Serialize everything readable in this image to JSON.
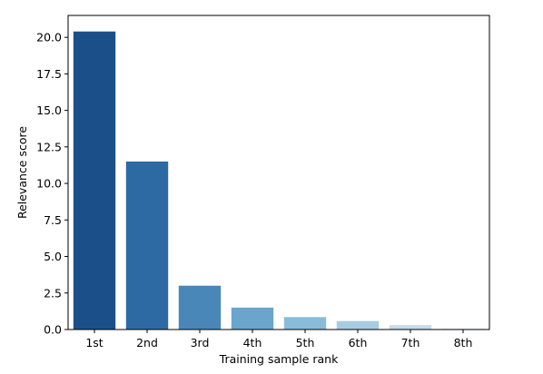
{
  "chart_data": {
    "type": "bar",
    "categories": [
      "1st",
      "2nd",
      "3rd",
      "4th",
      "5th",
      "6th",
      "7th",
      "8th"
    ],
    "values": [
      20.4,
      11.5,
      3.0,
      1.5,
      0.85,
      0.58,
      0.3,
      0.05
    ],
    "colors": [
      "#1b4f8a",
      "#2d6aa3",
      "#4a87b9",
      "#6aa5cc",
      "#89bcd9",
      "#a6cce3",
      "#c2dced",
      "#dbe9f6"
    ],
    "title": "",
    "xlabel": "Training sample rank",
    "ylabel": "Relevance score",
    "ylim": [
      0,
      21.5
    ],
    "yticks": [
      0.0,
      2.5,
      5.0,
      7.5,
      10.0,
      12.5,
      15.0,
      17.5,
      20.0
    ],
    "ytick_labels": [
      "0.0",
      "2.5",
      "5.0",
      "7.5",
      "10.0",
      "12.5",
      "15.0",
      "17.5",
      "20.0"
    ],
    "grid": false,
    "legend": "none"
  }
}
